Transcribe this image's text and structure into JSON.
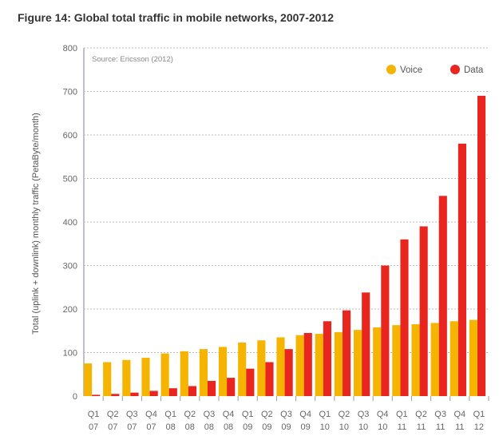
{
  "chart_data": {
    "type": "bar",
    "title": "Figure 14: Global total traffic in mobile networks, 2007-2012",
    "source": "Source: Ericsson (2012)",
    "ylabel": "Total (uplink + downlink) monthly traffic (PetaByte/month)",
    "xlabel": "",
    "ylim": [
      0,
      800
    ],
    "yticks": [
      0,
      100,
      200,
      300,
      400,
      500,
      600,
      700,
      800
    ],
    "grid": true,
    "legend": "top-right",
    "categories": [
      [
        "Q1",
        "07"
      ],
      [
        "Q2",
        "07"
      ],
      [
        "Q3",
        "07"
      ],
      [
        "Q4",
        "07"
      ],
      [
        "Q1",
        "08"
      ],
      [
        "Q2",
        "08"
      ],
      [
        "Q3",
        "08"
      ],
      [
        "Q4",
        "08"
      ],
      [
        "Q1",
        "09"
      ],
      [
        "Q2",
        "09"
      ],
      [
        "Q3",
        "09"
      ],
      [
        "Q4",
        "09"
      ],
      [
        "Q1",
        "10"
      ],
      [
        "Q2",
        "10"
      ],
      [
        "Q3",
        "10"
      ],
      [
        "Q4",
        "10"
      ],
      [
        "Q1",
        "11"
      ],
      [
        "Q2",
        "11"
      ],
      [
        "Q3",
        "11"
      ],
      [
        "Q4",
        "11"
      ],
      [
        "Q1",
        "12"
      ]
    ],
    "series": [
      {
        "name": "Voice",
        "color": "#f5b400",
        "values": [
          75,
          78,
          83,
          88,
          98,
          103,
          108,
          113,
          123,
          128,
          135,
          140,
          143,
          147,
          152,
          158,
          163,
          165,
          168,
          172,
          175
        ]
      },
      {
        "name": "Data",
        "color": "#e8251e",
        "values": [
          3,
          5,
          8,
          12,
          18,
          23,
          35,
          42,
          63,
          78,
          108,
          145,
          172,
          197,
          238,
          300,
          360,
          390,
          460,
          580,
          690
        ]
      }
    ]
  }
}
